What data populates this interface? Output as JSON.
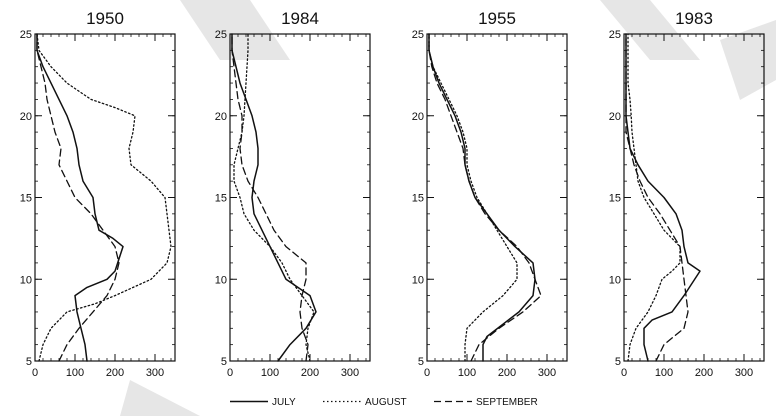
{
  "chart_data": [
    {
      "type": "line",
      "title": "1950",
      "xlim": [
        0,
        350
      ],
      "ylim": [
        5,
        25
      ],
      "xticks": [
        0,
        100,
        200,
        300
      ],
      "yticks": [
        5,
        10,
        15,
        20,
        25
      ],
      "series": [
        {
          "name": "JULY",
          "points": [
            [
              130,
              5
            ],
            [
              125,
              6
            ],
            [
              115,
              7
            ],
            [
              105,
              8
            ],
            [
              100,
              9
            ],
            [
              130,
              9.5
            ],
            [
              180,
              10
            ],
            [
              200,
              10.5
            ],
            [
              220,
              12
            ],
            [
              195,
              12.5
            ],
            [
              160,
              13
            ],
            [
              150,
              14
            ],
            [
              145,
              15
            ],
            [
              120,
              16
            ],
            [
              110,
              17
            ],
            [
              105,
              18
            ],
            [
              95,
              19
            ],
            [
              80,
              20
            ],
            [
              60,
              21
            ],
            [
              40,
              22
            ],
            [
              20,
              23
            ],
            [
              5,
              24
            ],
            [
              5,
              25
            ]
          ]
        },
        {
          "name": "AUGUST",
          "points": [
            [
              10,
              5
            ],
            [
              20,
              6
            ],
            [
              40,
              7
            ],
            [
              80,
              8
            ],
            [
              150,
              8.5
            ],
            [
              200,
              9
            ],
            [
              290,
              10
            ],
            [
              330,
              11
            ],
            [
              340,
              12
            ],
            [
              330,
              14
            ],
            [
              325,
              15
            ],
            [
              290,
              16
            ],
            [
              240,
              17
            ],
            [
              235,
              18
            ],
            [
              245,
              19
            ],
            [
              250,
              20
            ],
            [
              200,
              20.5
            ],
            [
              140,
              21
            ],
            [
              80,
              22
            ],
            [
              40,
              23
            ],
            [
              10,
              24
            ],
            [
              5,
              25
            ]
          ]
        },
        {
          "name": "SEPTEMBER",
          "points": [
            [
              60,
              5
            ],
            [
              80,
              6
            ],
            [
              110,
              7
            ],
            [
              145,
              8
            ],
            [
              180,
              9
            ],
            [
              200,
              10
            ],
            [
              210,
              11
            ],
            [
              200,
              12
            ],
            [
              170,
              13
            ],
            [
              140,
              14
            ],
            [
              100,
              15
            ],
            [
              80,
              16
            ],
            [
              60,
              17
            ],
            [
              65,
              18
            ],
            [
              50,
              19
            ],
            [
              40,
              20
            ],
            [
              30,
              21
            ],
            [
              25,
              22
            ],
            [
              15,
              23
            ],
            [
              5,
              24
            ],
            [
              5,
              25
            ]
          ]
        }
      ]
    },
    {
      "type": "line",
      "title": "1984",
      "xlim": [
        0,
        350
      ],
      "ylim": [
        5,
        25
      ],
      "xticks": [
        0,
        100,
        200,
        300
      ],
      "yticks": [
        5,
        10,
        15,
        20,
        25
      ],
      "series": [
        {
          "name": "JULY",
          "points": [
            [
              120,
              5
            ],
            [
              150,
              6
            ],
            [
              190,
              7
            ],
            [
              215,
              8
            ],
            [
              200,
              9
            ],
            [
              140,
              10
            ],
            [
              120,
              11
            ],
            [
              100,
              12
            ],
            [
              80,
              13
            ],
            [
              60,
              14
            ],
            [
              55,
              15
            ],
            [
              60,
              16
            ],
            [
              70,
              17
            ],
            [
              70,
              18
            ],
            [
              65,
              19
            ],
            [
              55,
              20
            ],
            [
              40,
              21
            ],
            [
              25,
              22
            ],
            [
              15,
              23
            ],
            [
              5,
              24
            ],
            [
              5,
              25
            ]
          ]
        },
        {
          "name": "AUGUST",
          "points": [
            [
              200,
              5
            ],
            [
              190,
              6
            ],
            [
              195,
              7
            ],
            [
              210,
              8
            ],
            [
              180,
              9
            ],
            [
              150,
              10
            ],
            [
              130,
              11
            ],
            [
              100,
              12
            ],
            [
              60,
              13
            ],
            [
              35,
              14
            ],
            [
              25,
              15
            ],
            [
              10,
              16
            ],
            [
              10,
              17
            ],
            [
              20,
              18
            ],
            [
              30,
              19
            ],
            [
              35,
              20
            ],
            [
              40,
              22
            ],
            [
              45,
              24
            ],
            [
              45,
              25
            ]
          ]
        },
        {
          "name": "SEPTEMBER",
          "points": [
            [
              190,
              5
            ],
            [
              195,
              6
            ],
            [
              180,
              7
            ],
            [
              175,
              8
            ],
            [
              180,
              9
            ],
            [
              190,
              10
            ],
            [
              190,
              11
            ],
            [
              140,
              12
            ],
            [
              110,
              13
            ],
            [
              90,
              14
            ],
            [
              70,
              15
            ],
            [
              45,
              16
            ],
            [
              30,
              17
            ],
            [
              25,
              18
            ],
            [
              30,
              19
            ],
            [
              30,
              20
            ],
            [
              20,
              21
            ],
            [
              15,
              22
            ],
            [
              10,
              23
            ],
            [
              5,
              24
            ],
            [
              5,
              25
            ]
          ]
        }
      ]
    },
    {
      "type": "line",
      "title": "1955",
      "xlim": [
        0,
        350
      ],
      "ylim": [
        5,
        25
      ],
      "xticks": [
        0,
        100,
        200,
        300
      ],
      "yticks": [
        5,
        10,
        15,
        20,
        25
      ],
      "series": [
        {
          "name": "JULY",
          "points": [
            [
              140,
              5
            ],
            [
              140,
              6
            ],
            [
              150,
              6.5
            ],
            [
              230,
              8
            ],
            [
              265,
              9
            ],
            [
              270,
              10
            ],
            [
              265,
              11
            ],
            [
              220,
              12
            ],
            [
              180,
              13
            ],
            [
              150,
              14
            ],
            [
              120,
              15
            ],
            [
              105,
              16
            ],
            [
              95,
              17
            ],
            [
              95,
              18
            ],
            [
              85,
              19
            ],
            [
              70,
              20
            ],
            [
              50,
              21
            ],
            [
              30,
              22
            ],
            [
              15,
              23
            ],
            [
              5,
              24
            ],
            [
              5,
              25
            ]
          ]
        },
        {
          "name": "AUGUST",
          "points": [
            [
              95,
              5
            ],
            [
              95,
              6
            ],
            [
              100,
              7
            ],
            [
              140,
              8
            ],
            [
              190,
              9
            ],
            [
              225,
              10
            ],
            [
              225,
              11
            ],
            [
              200,
              12
            ],
            [
              175,
              13
            ],
            [
              150,
              14
            ],
            [
              125,
              15
            ],
            [
              110,
              16
            ],
            [
              100,
              17
            ],
            [
              100,
              18
            ],
            [
              90,
              19
            ],
            [
              75,
              20
            ],
            [
              55,
              21
            ],
            [
              35,
              22
            ],
            [
              15,
              23
            ],
            [
              5,
              24
            ],
            [
              5,
              25
            ]
          ]
        },
        {
          "name": "SEPTEMBER",
          "points": [
            [
              110,
              5
            ],
            [
              130,
              6
            ],
            [
              180,
              7
            ],
            [
              240,
              8
            ],
            [
              285,
              9
            ],
            [
              270,
              10
            ],
            [
              255,
              11
            ],
            [
              225,
              12
            ],
            [
              180,
              13
            ],
            [
              145,
              14
            ],
            [
              120,
              15
            ],
            [
              105,
              16
            ],
            [
              95,
              17
            ],
            [
              90,
              18
            ],
            [
              75,
              19
            ],
            [
              60,
              20
            ],
            [
              45,
              21
            ],
            [
              25,
              22
            ],
            [
              12,
              23
            ],
            [
              5,
              24
            ],
            [
              5,
              25
            ]
          ]
        }
      ]
    },
    {
      "type": "line",
      "title": "1983",
      "xlim": [
        0,
        350
      ],
      "ylim": [
        5,
        25
      ],
      "xticks": [
        0,
        100,
        200,
        300
      ],
      "yticks": [
        5,
        10,
        15,
        20,
        25
      ],
      "series": [
        {
          "name": "JULY",
          "points": [
            [
              60,
              5
            ],
            [
              50,
              6
            ],
            [
              50,
              7
            ],
            [
              70,
              7.5
            ],
            [
              120,
              8
            ],
            [
              150,
              9
            ],
            [
              190,
              10.5
            ],
            [
              160,
              11
            ],
            [
              150,
              12
            ],
            [
              145,
              13
            ],
            [
              130,
              14
            ],
            [
              100,
              15
            ],
            [
              60,
              16
            ],
            [
              35,
              17
            ],
            [
              15,
              18
            ],
            [
              10,
              19
            ],
            [
              5,
              20
            ],
            [
              5,
              22
            ],
            [
              5,
              24
            ],
            [
              5,
              25
            ]
          ]
        },
        {
          "name": "AUGUST",
          "points": [
            [
              10,
              5
            ],
            [
              15,
              6
            ],
            [
              30,
              7
            ],
            [
              60,
              8
            ],
            [
              80,
              9
            ],
            [
              95,
              10
            ],
            [
              120,
              10.5
            ],
            [
              140,
              11
            ],
            [
              140,
              12
            ],
            [
              100,
              13
            ],
            [
              75,
              14
            ],
            [
              50,
              15
            ],
            [
              35,
              16
            ],
            [
              30,
              17
            ],
            [
              25,
              18
            ],
            [
              20,
              19
            ],
            [
              18,
              20
            ],
            [
              15,
              21
            ],
            [
              10,
              22
            ],
            [
              10,
              23
            ],
            [
              10,
              24
            ],
            [
              10,
              25
            ]
          ]
        },
        {
          "name": "SEPTEMBER",
          "points": [
            [
              80,
              5
            ],
            [
              100,
              6
            ],
            [
              150,
              7
            ],
            [
              160,
              8
            ],
            [
              155,
              9
            ],
            [
              150,
              10
            ],
            [
              145,
              11
            ],
            [
              140,
              12
            ],
            [
              115,
              13
            ],
            [
              90,
              14
            ],
            [
              60,
              15
            ],
            [
              40,
              16
            ],
            [
              25,
              17
            ],
            [
              15,
              18
            ],
            [
              5,
              19
            ],
            [
              5,
              20
            ],
            [
              5,
              22
            ],
            [
              5,
              24
            ],
            [
              5,
              25
            ]
          ]
        }
      ]
    }
  ],
  "legend": {
    "items": [
      {
        "label": "JULY",
        "style": "solid"
      },
      {
        "label": "AUGUST",
        "style": "dotted"
      },
      {
        "label": "SEPTEMBER",
        "style": "dashed"
      }
    ]
  }
}
